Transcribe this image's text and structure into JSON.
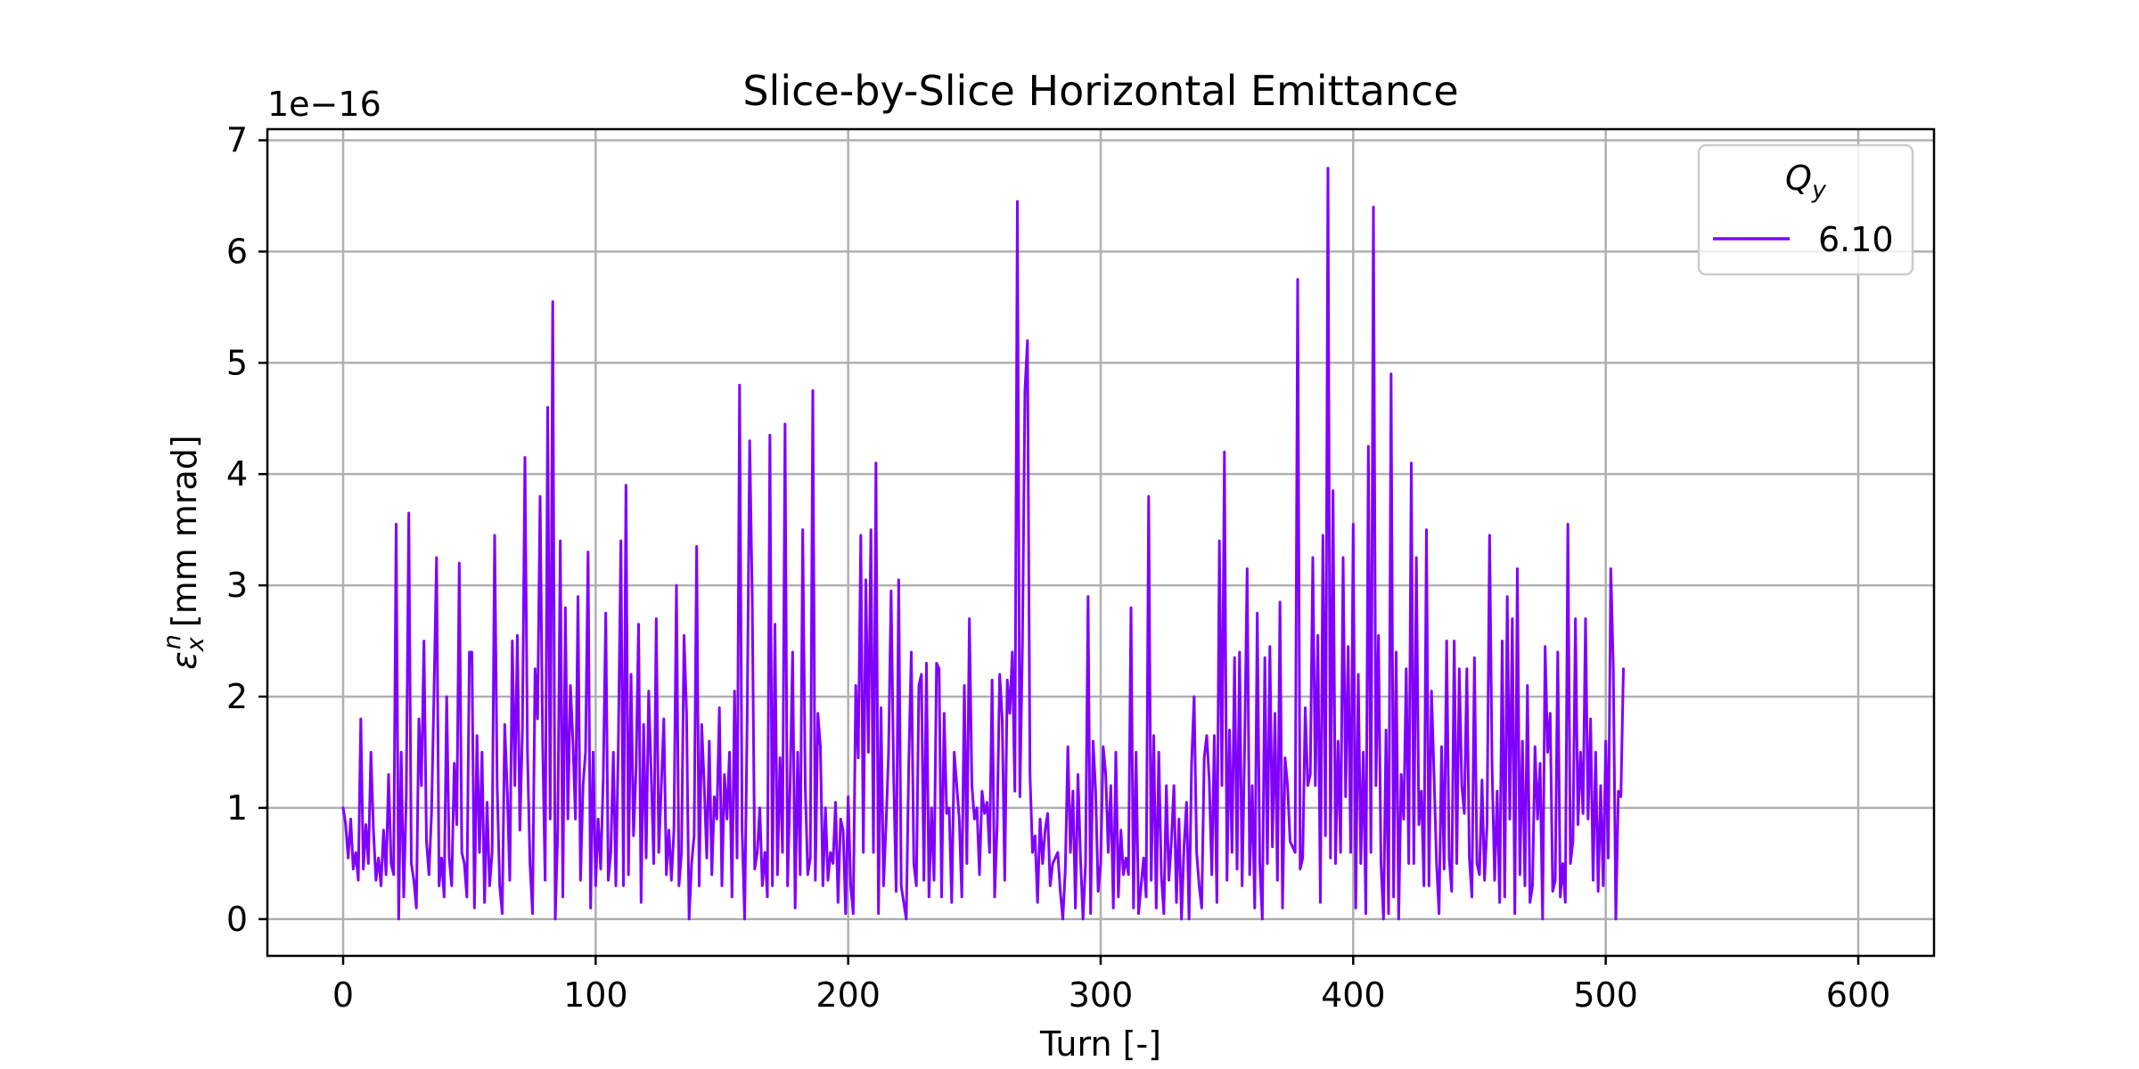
{
  "chart_data": {
    "type": "line",
    "title": "Slice-by-Slice Horizontal Emittance",
    "xlabel": "Turn [-]",
    "ylabel": {
      "symbol": "ε",
      "superscript": "n",
      "subscript": "x",
      "unit": "[mm mrad]"
    },
    "y_offset_label": "1e−16",
    "xlim": [
      -30,
      630
    ],
    "ylim": [
      -0.33,
      7.1
    ],
    "xticks": [
      0,
      100,
      200,
      300,
      400,
      500,
      600
    ],
    "yticks": [
      0,
      1,
      2,
      3,
      4,
      5,
      6,
      7
    ],
    "grid": true,
    "legend": {
      "placement": "top-right",
      "title": {
        "base": "Q",
        "subscript": "y"
      }
    },
    "series": [
      {
        "name": "6.10",
        "color": "#8000ff",
        "x_start": 0,
        "x_step": 1,
        "values": [
          1.0,
          0.85,
          0.55,
          0.9,
          0.45,
          0.6,
          0.35,
          1.8,
          0.45,
          0.85,
          0.5,
          1.5,
          0.8,
          0.35,
          0.55,
          0.3,
          0.8,
          0.4,
          1.3,
          0.5,
          0.4,
          3.55,
          0.0,
          1.5,
          0.2,
          1.1,
          3.65,
          0.5,
          0.35,
          0.1,
          1.8,
          1.2,
          2.5,
          0.7,
          0.4,
          0.95,
          2.05,
          3.25,
          0.3,
          0.55,
          0.2,
          2.0,
          0.55,
          0.3,
          1.4,
          0.85,
          3.2,
          0.6,
          0.5,
          0.2,
          2.4,
          2.4,
          0.1,
          1.65,
          0.6,
          1.5,
          0.15,
          1.05,
          0.3,
          0.6,
          3.45,
          1.2,
          0.3,
          0.05,
          1.75,
          1.15,
          0.35,
          2.5,
          1.2,
          2.55,
          0.8,
          1.7,
          4.15,
          1.5,
          0.5,
          0.05,
          2.25,
          1.8,
          3.8,
          1.6,
          0.35,
          4.6,
          0.9,
          5.55,
          0.0,
          0.8,
          3.4,
          0.2,
          2.8,
          0.9,
          2.1,
          1.6,
          0.9,
          2.9,
          0.35,
          1.2,
          1.5,
          3.3,
          0.1,
          1.5,
          0.3,
          0.9,
          0.45,
          1.25,
          2.75,
          0.35,
          0.6,
          1.5,
          0.3,
          1.6,
          3.4,
          0.3,
          3.9,
          0.4,
          2.2,
          0.75,
          1.35,
          2.65,
          0.15,
          1.75,
          0.55,
          2.05,
          1.3,
          0.5,
          2.7,
          0.6,
          1.2,
          1.8,
          0.4,
          0.8,
          0.35,
          0.8,
          3.0,
          0.3,
          0.6,
          2.55,
          1.85,
          0.0,
          0.5,
          0.75,
          3.35,
          0.3,
          1.75,
          1.2,
          0.55,
          1.6,
          0.4,
          1.1,
          0.9,
          1.9,
          0.3,
          1.3,
          0.9,
          1.5,
          0.2,
          2.05,
          0.55,
          4.8,
          0.8,
          0.0,
          1.8,
          4.3,
          2.9,
          0.45,
          0.6,
          1.0,
          0.3,
          0.6,
          0.2,
          4.35,
          0.3,
          2.65,
          0.4,
          1.45,
          0.6,
          4.45,
          0.3,
          1.2,
          2.4,
          0.1,
          1.5,
          0.4,
          3.5,
          1.2,
          0.4,
          0.55,
          4.75,
          0.35,
          1.85,
          1.55,
          0.3,
          1.0,
          0.35,
          0.6,
          0.5,
          1.05,
          0.15,
          0.9,
          0.8,
          0.05,
          1.1,
          0.3,
          0.05,
          2.1,
          1.45,
          3.45,
          0.6,
          3.05,
          1.5,
          3.5,
          0.6,
          4.1,
          0.05,
          1.9,
          0.3,
          0.85,
          1.5,
          2.95,
          1.3,
          0.25,
          3.05,
          0.3,
          0.15,
          0.0,
          1.4,
          2.4,
          0.5,
          0.3,
          2.1,
          2.2,
          0.35,
          2.3,
          0.2,
          1.0,
          0.35,
          2.3,
          2.25,
          0.2,
          1.85,
          0.95,
          1.0,
          0.15,
          1.5,
          1.2,
          0.9,
          0.2,
          2.1,
          0.5,
          2.7,
          1.2,
          0.9,
          1.0,
          0.4,
          1.15,
          0.95,
          1.05,
          0.6,
          2.15,
          0.2,
          0.85,
          2.2,
          1.8,
          0.35,
          2.15,
          1.85,
          2.4,
          1.15,
          6.45,
          1.1,
          2.45,
          4.75,
          5.2,
          1.3,
          0.6,
          0.75,
          0.15,
          0.9,
          0.5,
          0.8,
          0.95,
          0.3,
          0.5,
          0.55,
          0.6,
          0.25,
          0.0,
          0.45,
          1.55,
          0.6,
          1.15,
          0.1,
          1.3,
          0.55,
          0.0,
          0.5,
          2.9,
          0.05,
          1.6,
          1.15,
          0.25,
          0.5,
          1.55,
          1.3,
          0.6,
          1.2,
          0.1,
          1.5,
          0.2,
          0.8,
          0.4,
          0.55,
          0.4,
          2.8,
          0.1,
          1.5,
          0.05,
          0.3,
          0.55,
          0.2,
          3.8,
          0.35,
          1.65,
          0.1,
          1.5,
          0.4,
          0.05,
          1.2,
          0.35,
          0.7,
          1.2,
          0.15,
          0.9,
          0.0,
          0.65,
          1.05,
          0.0,
          1.4,
          2.0,
          0.6,
          0.3,
          0.1,
          1.45,
          1.65,
          1.25,
          0.4,
          1.65,
          0.15,
          3.4,
          1.2,
          4.2,
          0.35,
          1.7,
          0.6,
          2.35,
          0.45,
          2.4,
          0.3,
          1.55,
          3.15,
          0.4,
          1.2,
          0.1,
          2.75,
          0.5,
          0.0,
          2.35,
          0.5,
          2.45,
          0.65,
          1.85,
          0.35,
          2.85,
          0.1,
          1.45,
          1.2,
          0.7,
          0.65,
          0.6,
          5.75,
          0.45,
          0.55,
          1.9,
          1.2,
          1.3,
          3.25,
          1.2,
          2.55,
          0.15,
          3.45,
          0.75,
          6.75,
          0.55,
          3.85,
          0.5,
          1.6,
          0.6,
          3.25,
          1.1,
          2.45,
          0.6,
          3.55,
          0.1,
          2.2,
          0.5,
          1.5,
          0.05,
          4.25,
          0.6,
          6.4,
          1.2,
          2.55,
          0.5,
          0.0,
          1.7,
          0.05,
          4.9,
          0.2,
          2.4,
          0.0,
          1.3,
          0.9,
          2.25,
          0.5,
          4.1,
          0.5,
          3.25,
          0.85,
          1.15,
          0.3,
          3.5,
          0.3,
          2.05,
          1.3,
          0.5,
          0.05,
          1.55,
          0.45,
          2.5,
          0.55,
          0.25,
          2.5,
          0.5,
          2.25,
          1.2,
          0.95,
          2.25,
          0.55,
          0.2,
          2.35,
          0.5,
          0.4,
          1.25,
          0.35,
          0.85,
          3.45,
          1.35,
          0.35,
          1.15,
          0.15,
          2.5,
          0.2,
          2.9,
          0.9,
          2.7,
          0.05,
          3.15,
          0.4,
          1.6,
          0.3,
          2.1,
          0.15,
          0.3,
          1.55,
          0.9,
          1.4,
          0.0,
          2.45,
          1.5,
          1.85,
          0.25,
          0.35,
          2.4,
          0.2,
          0.5,
          0.15,
          3.55,
          0.5,
          0.7,
          2.7,
          0.85,
          1.5,
          0.95,
          2.7,
          0.9,
          1.8,
          0.35,
          1.5,
          0.25,
          1.2,
          0.3,
          1.6,
          0.55,
          3.15,
          2.25,
          0.0,
          1.15,
          1.1,
          2.25
        ]
      }
    ]
  }
}
